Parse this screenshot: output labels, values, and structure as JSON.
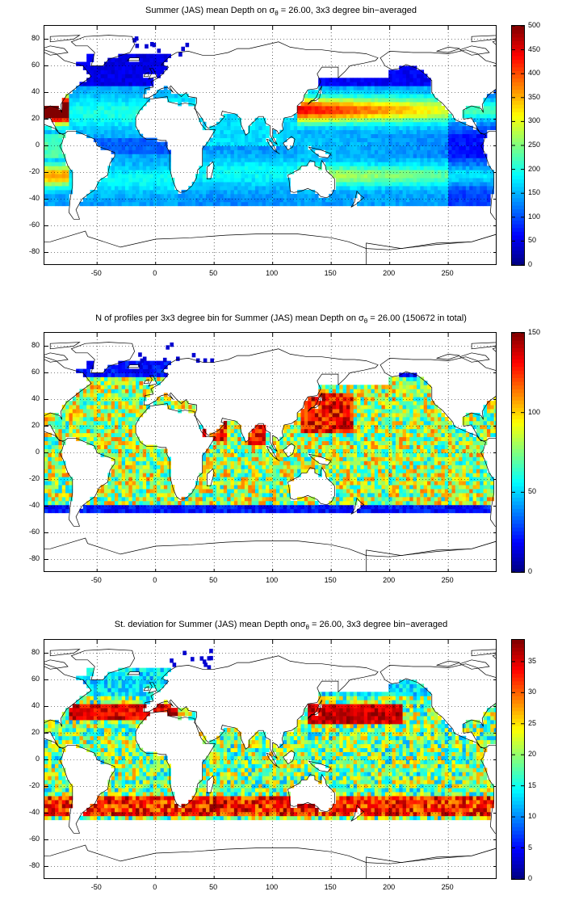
{
  "chart_data": [
    {
      "type": "heatmap",
      "title_prefix": "Summer (JAS) mean Depth on ",
      "title_symbol": "σ",
      "title_sub": "θ",
      "title_suffix": " = 26.00, 3x3 degree bin−averaged",
      "xlim": [
        -95,
        292
      ],
      "ylim": [
        -90,
        90
      ],
      "xticks": [
        -50,
        0,
        50,
        100,
        150,
        200,
        250
      ],
      "yticks": [
        80,
        60,
        40,
        20,
        0,
        -20,
        -40,
        -60,
        -80
      ],
      "colorbar_ticks": [
        500,
        450,
        400,
        350,
        300,
        250,
        200,
        150,
        100,
        50,
        0
      ],
      "clim": [
        0,
        500
      ],
      "colormap": "jet",
      "grid": "dotted",
      "field": "mean_depth"
    },
    {
      "type": "heatmap",
      "title_prefix": "N of profiles per 3x3 degree bin for Summer (JAS) mean Depth on ",
      "title_symbol": "σ",
      "title_sub": "θ",
      "title_suffix": " = 26.00 (150672 in total)",
      "xlim": [
        -95,
        292
      ],
      "ylim": [
        -90,
        90
      ],
      "xticks": [
        -50,
        0,
        50,
        100,
        150,
        200,
        250
      ],
      "yticks": [
        80,
        60,
        40,
        20,
        0,
        -20,
        -40,
        -60,
        -80
      ],
      "colorbar_ticks": [
        150,
        100,
        50,
        0
      ],
      "clim": [
        0,
        150
      ],
      "colormap": "jet",
      "grid": "dotted",
      "field": "n_profiles"
    },
    {
      "type": "heatmap",
      "title_prefix": "St. deviation for Summer (JAS) mean Depth on",
      "title_symbol": "σ",
      "title_sub": "θ",
      "title_suffix": " = 26.00, 3x3 degree bin−averaged",
      "xlim": [
        -95,
        292
      ],
      "ylim": [
        -90,
        90
      ],
      "xticks": [
        -50,
        0,
        50,
        100,
        150,
        200,
        250
      ],
      "yticks": [
        80,
        60,
        40,
        20,
        0,
        -20,
        -40,
        -60,
        -80
      ],
      "colorbar_ticks": [
        35,
        30,
        25,
        20,
        15,
        10,
        5,
        0
      ],
      "clim": [
        0,
        38.5
      ],
      "colormap": "jet",
      "grid": "dotted",
      "field": "std_dev"
    }
  ]
}
